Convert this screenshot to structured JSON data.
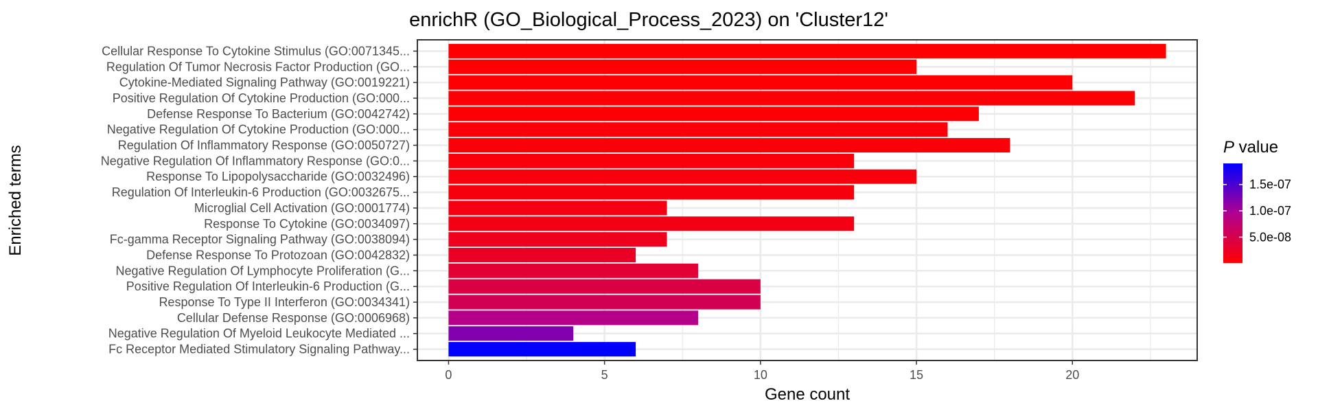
{
  "chart_data": {
    "type": "bar",
    "orientation": "horizontal",
    "title": "enrichR (GO_Biological_Process_2023) on 'Cluster12'",
    "xlabel": "Gene count",
    "ylabel": "Enriched terms",
    "xlim": [
      -1,
      24
    ],
    "xticks": [
      0,
      5,
      10,
      15,
      20
    ],
    "grid": true,
    "legend": {
      "title_italic": "P",
      "title_rest": " value",
      "placement": "right",
      "colorscale": [
        "#FF0000",
        "#0000FF"
      ],
      "range": [
        1e-09,
        1.9e-07
      ],
      "ticks": [
        {
          "value": 5e-08,
          "label": "5.0e-08"
        },
        {
          "value": 1e-07,
          "label": "1.0e-07"
        },
        {
          "value": 1.5e-07,
          "label": "1.5e-07"
        }
      ]
    },
    "categories": [
      "Cellular Response To Cytokine Stimulus (GO:0071345...",
      "Regulation Of Tumor Necrosis Factor Production (GO...",
      "Cytokine-Mediated Signaling Pathway (GO:0019221)",
      "Positive Regulation Of Cytokine Production (GO:000...",
      "Defense Response To Bacterium (GO:0042742)",
      "Negative Regulation Of Cytokine Production (GO:000...",
      "Regulation Of Inflammatory Response (GO:0050727)",
      "Negative Regulation Of Inflammatory Response (GO:0...",
      "Response To Lipopolysaccharide (GO:0032496)",
      "Regulation Of Interleukin-6 Production (GO:0032675...",
      "Microglial Cell Activation (GO:0001774)",
      "Response To Cytokine (GO:0034097)",
      "Fc-gamma Receptor Signaling Pathway (GO:0038094)",
      "Defense Response To Protozoan (GO:0042832)",
      "Negative Regulation Of Lymphocyte Proliferation (G...",
      "Positive Regulation Of Interleukin-6 Production (G...",
      "Response To Type II Interferon (GO:0034341)",
      "Cellular Defense Response (GO:0006968)",
      "Negative Regulation Of Myeloid Leukocyte Mediated ...",
      "Fc Receptor Mediated Stimulatory Signaling Pathway..."
    ],
    "values": [
      23,
      15,
      20,
      22,
      17,
      16,
      18,
      13,
      15,
      13,
      7,
      13,
      7,
      6,
      8,
      10,
      10,
      8,
      4,
      6
    ],
    "pvalues": [
      1e-09,
      2e-09,
      3e-09,
      4e-09,
      5e-09,
      6e-09,
      7e-09,
      8e-09,
      9e-09,
      1e-08,
      1.3e-08,
      1.5e-08,
      2e-08,
      2.5e-08,
      3.5e-08,
      4.5e-08,
      5.5e-08,
      9e-08,
      1.2e-07,
      1.9e-07
    ]
  }
}
